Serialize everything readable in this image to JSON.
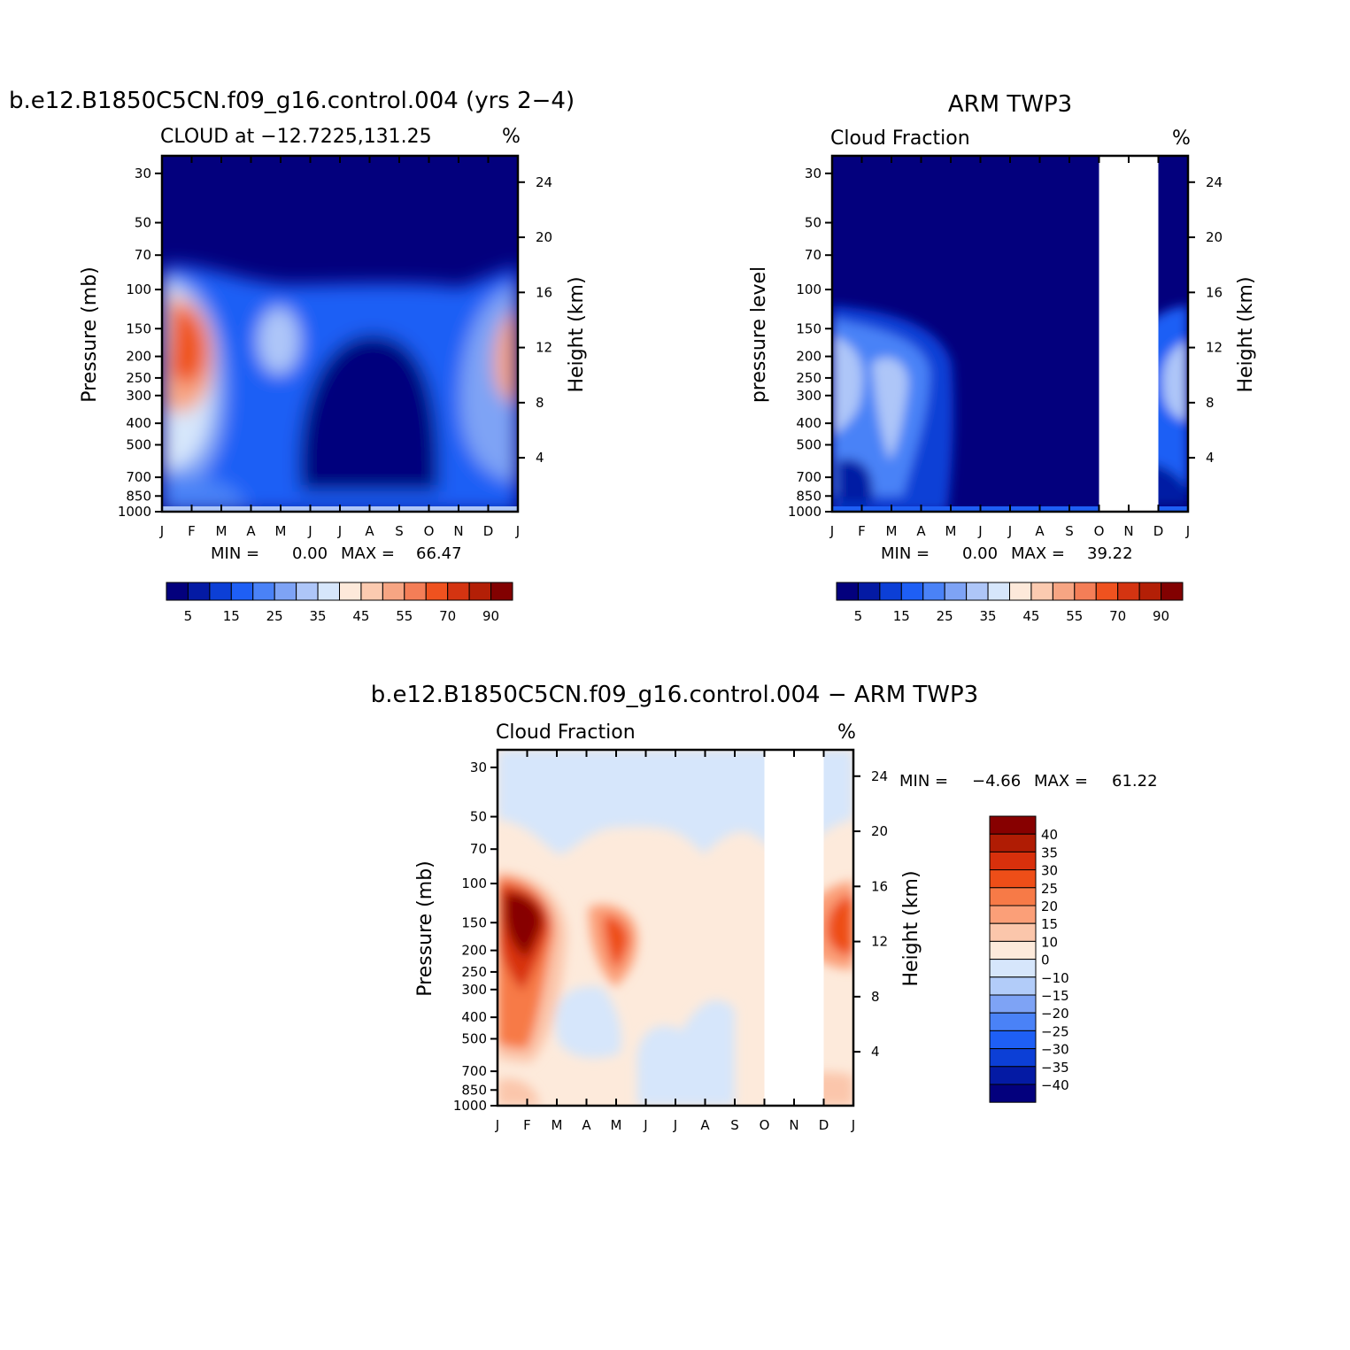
{
  "chart_data": [
    {
      "id": "model",
      "type": "heatmap",
      "title": "b.e12.B1850C5CN.f09_g16.control.004 (yrs 2−4)",
      "subtitle": "CLOUD at −12.7225,131.25",
      "units": "%",
      "ylabel": "Pressure (mb)",
      "ylabel_right": "Height (km)",
      "x_ticks": [
        "J",
        "F",
        "M",
        "A",
        "M",
        "J",
        "J",
        "A",
        "S",
        "O",
        "N",
        "D",
        "J"
      ],
      "y_ticks": [
        "30",
        "50",
        "70",
        "100",
        "150",
        "200",
        "250",
        "300",
        "400",
        "500",
        "700",
        "850",
        "1000"
      ],
      "y_right_ticks": [
        "24",
        "20",
        "16",
        "12",
        "8",
        "4"
      ],
      "stats_text": [
        "MIN =",
        "0.00",
        "MAX =",
        "66.47"
      ],
      "colorbar_labels": [
        "5",
        "15",
        "25",
        "35",
        "45",
        "55",
        "70",
        "90"
      ],
      "missing_months": [],
      "features": [
        {
          "month": 1.3,
          "pressure": 180,
          "value": 66
        },
        {
          "month": 4.8,
          "pressure": 190,
          "value": 30
        },
        {
          "month": 12.0,
          "pressure": 190,
          "value": 50
        },
        {
          "month": 1.5,
          "pressure": 470,
          "value": 36
        }
      ]
    },
    {
      "id": "obs",
      "type": "heatmap",
      "title": "ARM TWP3",
      "subtitle": "Cloud Fraction",
      "units": "%",
      "ylabel": "pressure level",
      "ylabel_right": "Height (km)",
      "x_ticks": [
        "J",
        "F",
        "M",
        "A",
        "M",
        "J",
        "J",
        "A",
        "S",
        "O",
        "N",
        "D",
        "J"
      ],
      "y_ticks": [
        "30",
        "50",
        "70",
        "100",
        "150",
        "200",
        "250",
        "300",
        "400",
        "500",
        "700",
        "850",
        "1000"
      ],
      "y_right_ticks": [
        "24",
        "20",
        "16",
        "12",
        "8",
        "4"
      ],
      "stats_text": [
        "MIN =",
        "0.00",
        "MAX =",
        "39.22"
      ],
      "colorbar_labels": [
        "5",
        "15",
        "25",
        "35",
        "45",
        "55",
        "70",
        "90"
      ],
      "missing_months": [
        9,
        10
      ],
      "features": [
        {
          "month": 0.2,
          "pressure": 260,
          "value": 35
        },
        {
          "month": 2.0,
          "pressure": 270,
          "value": 35
        },
        {
          "month": 12.0,
          "pressure": 270,
          "value": 32
        }
      ]
    },
    {
      "id": "diff",
      "type": "heatmap",
      "title": "b.e12.B1850C5CN.f09_g16.control.004 − ARM TWP3",
      "subtitle": "Cloud Fraction",
      "units": "%",
      "ylabel": "Pressure (mb)",
      "ylabel_right": "Height (km)",
      "x_ticks": [
        "J",
        "F",
        "M",
        "A",
        "M",
        "J",
        "J",
        "A",
        "S",
        "O",
        "N",
        "D",
        "J"
      ],
      "y_ticks": [
        "30",
        "50",
        "70",
        "100",
        "150",
        "200",
        "250",
        "300",
        "400",
        "500",
        "700",
        "850",
        "1000"
      ],
      "y_right_ticks": [
        "24",
        "20",
        "16",
        "12",
        "8",
        "4"
      ],
      "stats_text": [
        "MIN =",
        "−4.66",
        "MAX =",
        "61.22"
      ],
      "colorbar_labels": [
        "40",
        "35",
        "30",
        "25",
        "20",
        "15",
        "10",
        "0",
        "−10",
        "−15",
        "−20",
        "−25",
        "−30",
        "−35",
        "−40"
      ],
      "missing_months": [
        9,
        10
      ],
      "features": [
        {
          "month": 1.1,
          "pressure": 150,
          "value": 61
        },
        {
          "month": 4.0,
          "pressure": 160,
          "value": 26
        },
        {
          "month": 11.9,
          "pressure": 140,
          "value": 30
        },
        {
          "month": 1.0,
          "pressure": 480,
          "value": 25
        },
        {
          "month": 3.2,
          "pressure": 420,
          "value": -4
        },
        {
          "month": 7.2,
          "pressure": 560,
          "value": -4
        }
      ]
    }
  ],
  "colors": {
    "seq": [
      "#03007d",
      "#041aa4",
      "#0c3fd6",
      "#1e5ff5",
      "#4a82f7",
      "#7ea3f5",
      "#aec6f8",
      "#d6e6fb",
      "#fde9da",
      "#fbcab0",
      "#f7a583",
      "#f47e57",
      "#ef521f",
      "#d43411",
      "#b31f06",
      "#820101"
    ],
    "diff": [
      "#870000",
      "#b01c04",
      "#d8300c",
      "#ee4e18",
      "#f77a47",
      "#fb9f78",
      "#fbc6ab",
      "#fdeadb",
      "#d6e6fb",
      "#b2ccf9",
      "#7ea3f5",
      "#4a82f7",
      "#1e5ff5",
      "#0c3fd6",
      "#041aa4",
      "#03007d"
    ],
    "missing": "#ffffff"
  }
}
